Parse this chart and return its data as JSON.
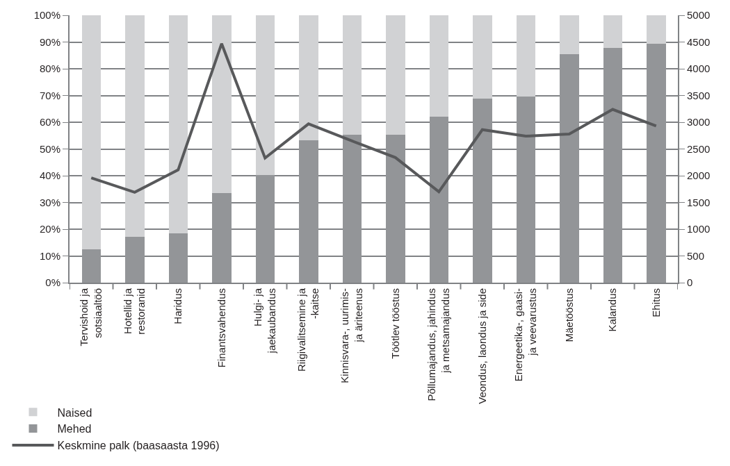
{
  "chart_data": {
    "type": "bar",
    "stacked": true,
    "categories": [
      "Tervishoid ja\nsotsiaaltöö",
      "Hotellid ja\nrestoranid",
      "Haridus",
      "Finantsvahendus",
      "Hulgi- ja\njaekaubandus",
      "Riigivalitsemine ja\n-kaitse",
      "Kinnisvara-, uurimis-\nja äriteenus",
      "Töötlev tööstus",
      "Põllumajandus, jahindus\nja metsamajandus",
      "Veondus, laondus ja side",
      "Energeetika-, gaasi-\nja veevarustus",
      "Mäetööstus",
      "Kalandus",
      "Ehitus"
    ],
    "series": [
      {
        "name": "Mehed",
        "color": "#939598",
        "values": [
          12.5,
          17.1,
          18.5,
          33.5,
          40.3,
          53.2,
          55.4,
          55.4,
          62.1,
          68.9,
          69.7,
          85.4,
          87.8,
          89.3
        ]
      },
      {
        "name": "Naised",
        "color": "#d1d2d4",
        "values": [
          87.5,
          82.9,
          81.5,
          66.5,
          59.7,
          46.8,
          44.6,
          44.6,
          37.9,
          31.1,
          30.3,
          14.6,
          12.2,
          10.7
        ]
      },
      {
        "name": "Keskmine palk (baasaasta 1996)",
        "type": "line",
        "axis": "y2",
        "color": "#58595b",
        "marker": "none",
        "values": [
          1960,
          1690,
          2110,
          4470,
          2330,
          2970,
          2650,
          2340,
          1700,
          2860,
          2740,
          2780,
          3240,
          2930
        ]
      }
    ],
    "ylim": [
      0,
      100
    ],
    "yticks": [
      {
        "value": 0,
        "label": "0%"
      },
      {
        "value": 10,
        "label": "10%"
      },
      {
        "value": 20,
        "label": "20%"
      },
      {
        "value": 30,
        "label": "30%"
      },
      {
        "value": 40,
        "label": "40%"
      },
      {
        "value": 50,
        "label": "50%"
      },
      {
        "value": 60,
        "label": "60%"
      },
      {
        "value": 70,
        "label": "70%"
      },
      {
        "value": 80,
        "label": "80%"
      },
      {
        "value": 90,
        "label": "90%"
      },
      {
        "value": 100,
        "label": "100%"
      }
    ],
    "y2lim": [
      0,
      5000
    ],
    "y2ticks": [
      0,
      500,
      1000,
      1500,
      2000,
      2500,
      3000,
      3500,
      4000,
      4500,
      5000
    ],
    "grid": "y",
    "legend": "bottom left"
  }
}
